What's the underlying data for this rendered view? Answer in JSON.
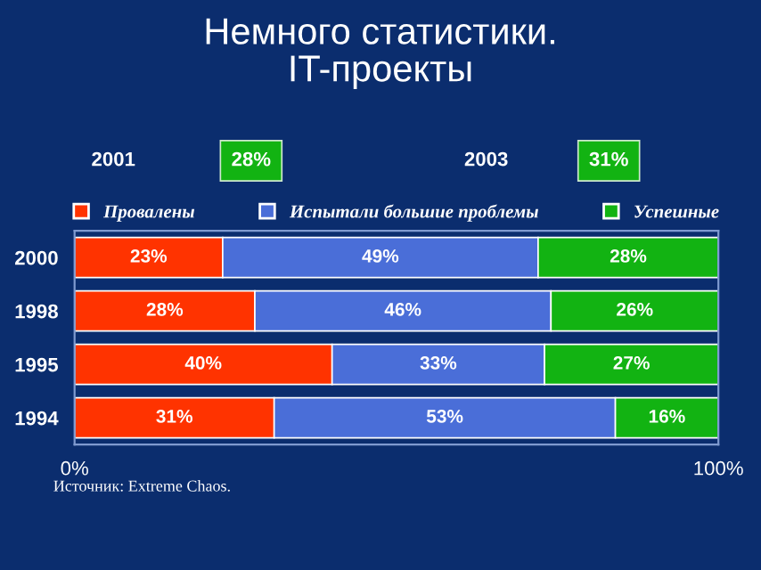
{
  "chart_data": {
    "type": "bar",
    "orientation": "horizontal",
    "stacked": true,
    "title": "Немного статистики.\nIT-проекты",
    "categories": [
      "2000",
      "1998",
      "1995",
      "1994"
    ],
    "series": [
      {
        "name": "Провалены",
        "color": "#ff3300",
        "values": [
          23,
          28,
          40,
          31
        ],
        "value_labels": [
          "23%",
          "28%",
          "40%",
          "31%"
        ]
      },
      {
        "name": "Испытали большие проблемы",
        "color": "#4a6ed8",
        "values": [
          49,
          46,
          33,
          53
        ],
        "value_labels": [
          "49%",
          "46%",
          "33%",
          "53%"
        ]
      },
      {
        "name": "Успешные",
        "color": "#12b312",
        "values": [
          28,
          26,
          27,
          16
        ],
        "value_labels": [
          "28%",
          "26%",
          "27%",
          "16%"
        ]
      }
    ],
    "xlim": [
      0,
      100
    ],
    "xticks": [
      {
        "value": 0,
        "label": "0%"
      },
      {
        "value": 100,
        "label": "100%"
      }
    ],
    "legend": "top",
    "grid": false,
    "annotations": [
      "2001",
      "28%",
      "2003",
      "31%",
      "Источник: Extreme Chaos."
    ]
  }
}
